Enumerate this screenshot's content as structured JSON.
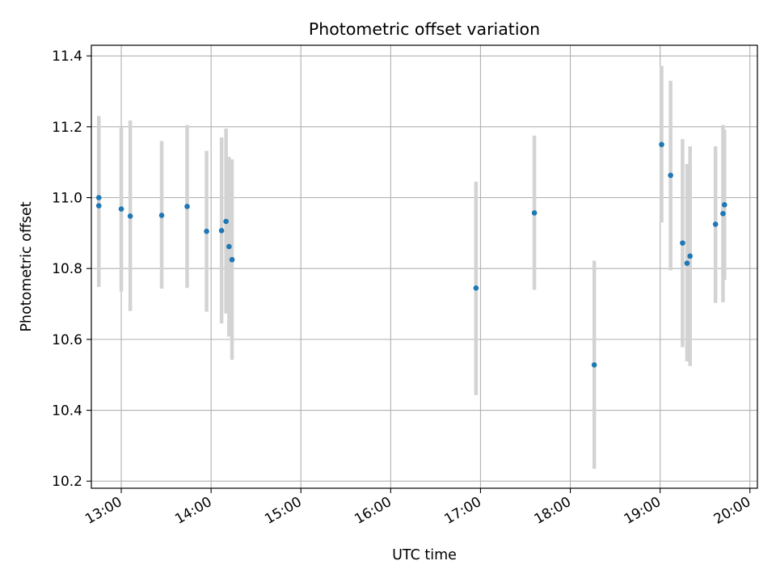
{
  "chart_data": {
    "type": "scatter",
    "title": "Photometric offset variation",
    "xlabel": "UTC time",
    "ylabel": "Photometric offset",
    "xlim": [
      "12:40",
      "20:05"
    ],
    "ylim": [
      10.18,
      11.43
    ],
    "x_ticks": [
      "13:00",
      "14:00",
      "15:00",
      "16:00",
      "17:00",
      "18:00",
      "19:00",
      "20:00"
    ],
    "y_ticks": [
      "10.2",
      "10.4",
      "10.6",
      "10.8",
      "11.0",
      "11.2",
      "11.4"
    ],
    "grid": true,
    "point_color": "#1f77b4",
    "errorbar_color": "#d3d3d3",
    "points": [
      {
        "time": "12:45",
        "y": 10.977,
        "ymin": 10.775,
        "ymax": 11.2
      },
      {
        "time": "12:45",
        "y": 11.0,
        "ymin": 10.748,
        "ymax": 11.23
      },
      {
        "time": "13:00",
        "y": 10.968,
        "ymin": 10.735,
        "ymax": 11.2
      },
      {
        "time": "13:06",
        "y": 10.948,
        "ymin": 10.68,
        "ymax": 11.218
      },
      {
        "time": "13:27",
        "y": 10.95,
        "ymin": 10.743,
        "ymax": 11.16
      },
      {
        "time": "13:44",
        "y": 10.975,
        "ymin": 10.745,
        "ymax": 11.205
      },
      {
        "time": "13:57",
        "y": 10.905,
        "ymin": 10.678,
        "ymax": 11.132
      },
      {
        "time": "14:07",
        "y": 10.907,
        "ymin": 10.645,
        "ymax": 11.17
      },
      {
        "time": "14:10",
        "y": 10.933,
        "ymin": 10.673,
        "ymax": 11.195
      },
      {
        "time": "14:12",
        "y": 10.862,
        "ymin": 10.608,
        "ymax": 11.115
      },
      {
        "time": "14:14",
        "y": 10.825,
        "ymin": 10.542,
        "ymax": 11.108
      },
      {
        "time": "16:57",
        "y": 10.745,
        "ymin": 10.443,
        "ymax": 11.045
      },
      {
        "time": "17:36",
        "y": 10.957,
        "ymin": 10.74,
        "ymax": 11.175
      },
      {
        "time": "18:16",
        "y": 10.528,
        "ymin": 10.235,
        "ymax": 10.822
      },
      {
        "time": "19:01",
        "y": 11.15,
        "ymin": 10.93,
        "ymax": 11.372
      },
      {
        "time": "19:07",
        "y": 11.063,
        "ymin": 10.795,
        "ymax": 11.33
      },
      {
        "time": "19:15",
        "y": 10.872,
        "ymin": 10.578,
        "ymax": 11.165
      },
      {
        "time": "19:18",
        "y": 10.815,
        "ymin": 10.538,
        "ymax": 11.095
      },
      {
        "time": "19:20",
        "y": 10.835,
        "ymin": 10.525,
        "ymax": 11.145
      },
      {
        "time": "19:37",
        "y": 10.925,
        "ymin": 10.703,
        "ymax": 11.145
      },
      {
        "time": "19:42",
        "y": 10.955,
        "ymin": 10.705,
        "ymax": 11.205
      },
      {
        "time": "19:43",
        "y": 10.98,
        "ymin": 10.768,
        "ymax": 11.192
      }
    ]
  }
}
